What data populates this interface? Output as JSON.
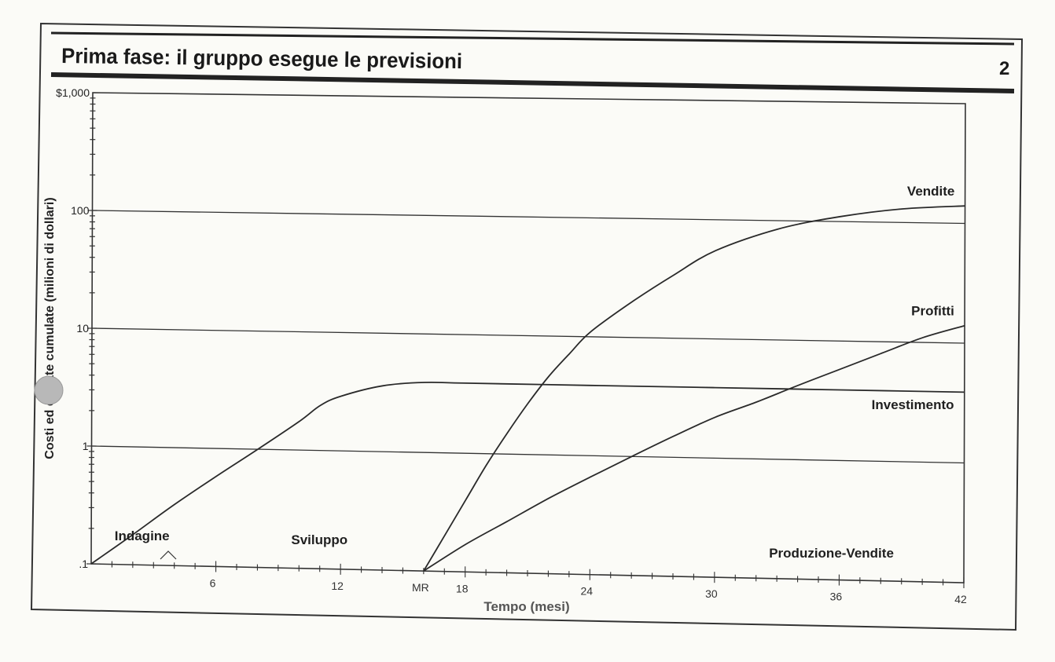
{
  "header": {
    "title": "Prima fase: il gruppo esegue le previsioni",
    "page_number": "2"
  },
  "chart_data": {
    "type": "line",
    "title": "Prima fase: il gruppo esegue le previsioni",
    "xlabel": "Tempo (mesi)",
    "ylabel": "Costi ed entrate cumulate (milioni di dollari)",
    "y_scale": "log",
    "ylim": [
      0.1,
      1000
    ],
    "xlim": [
      0,
      42
    ],
    "grid": true,
    "y_ticks": [
      {
        "value": 0.1,
        "label": ".1"
      },
      {
        "value": 1,
        "label": "1"
      },
      {
        "value": 10,
        "label": "10"
      },
      {
        "value": 100,
        "label": "100"
      },
      {
        "value": 1000,
        "label": "$1,000"
      }
    ],
    "x_ticks": [
      {
        "value": 6,
        "label": "6"
      },
      {
        "value": 12,
        "label": "12"
      },
      {
        "value": 16,
        "label": "MR"
      },
      {
        "value": 18,
        "label": "18"
      },
      {
        "value": 24,
        "label": "24"
      },
      {
        "value": 30,
        "label": "30"
      },
      {
        "value": 36,
        "label": "36"
      },
      {
        "value": 42,
        "label": "42"
      }
    ],
    "series": [
      {
        "name": "Investimento",
        "x": [
          0,
          2,
          4,
          6,
          8,
          10,
          11,
          12,
          14,
          16,
          18,
          24,
          30,
          36,
          42
        ],
        "y": [
          0.1,
          0.18,
          0.33,
          0.58,
          1.0,
          1.75,
          2.4,
          2.9,
          3.6,
          3.9,
          3.9,
          3.9,
          3.9,
          3.9,
          3.9
        ]
      },
      {
        "name": "Vendite",
        "x": [
          16,
          17,
          18,
          19,
          20,
          21,
          22,
          23,
          24,
          26,
          28,
          30,
          33,
          36,
          39,
          42
        ],
        "y": [
          0.1,
          0.2,
          0.4,
          0.8,
          1.5,
          2.7,
          4.6,
          7.2,
          11,
          20,
          34,
          55,
          85,
          110,
          130,
          140
        ]
      },
      {
        "name": "Profitti",
        "x": [
          16,
          18,
          20,
          22,
          24,
          26,
          28,
          30,
          32,
          34,
          36,
          38,
          40,
          42
        ],
        "y": [
          0.1,
          0.17,
          0.27,
          0.43,
          0.66,
          1.0,
          1.5,
          2.2,
          3.0,
          4.2,
          5.8,
          8.0,
          11,
          14
        ]
      }
    ],
    "annotations": [
      {
        "text": "Indagine",
        "x": 1.5,
        "y": 0.16
      },
      {
        "text": "Sviluppo",
        "x": 10,
        "y": 0.16
      },
      {
        "text": "Produzione-Vendite",
        "x": 33,
        "y": 0.15
      },
      {
        "text": "Vendite",
        "x": 41.5,
        "y": 170
      },
      {
        "text": "Profitti",
        "x": 41.5,
        "y": 17
      },
      {
        "text": "Investimento",
        "x": 41.5,
        "y": 2.8
      }
    ]
  }
}
